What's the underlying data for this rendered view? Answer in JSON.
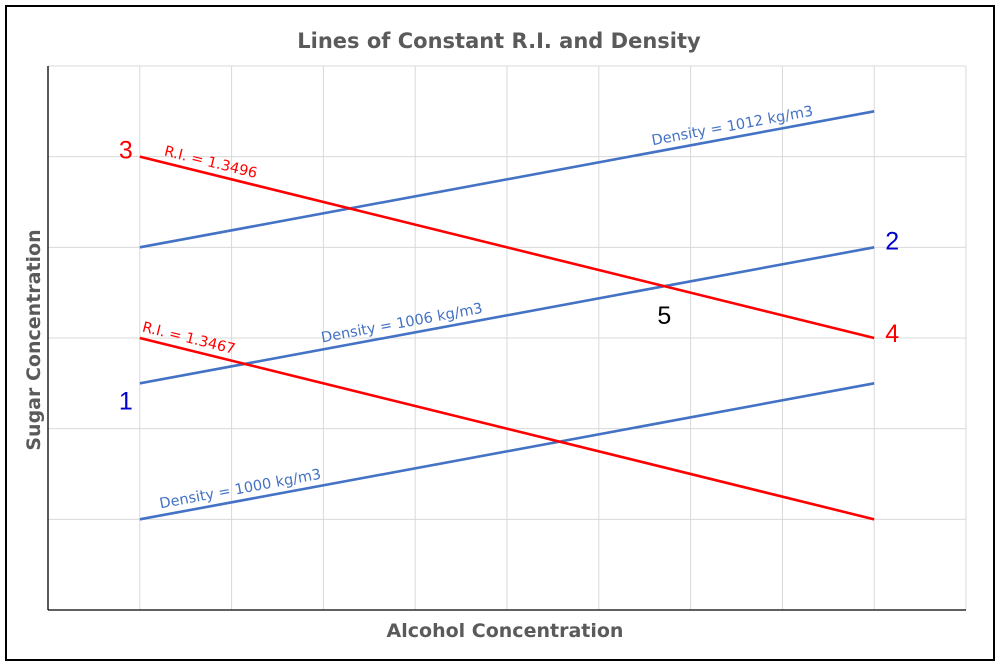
{
  "chart_data": {
    "type": "line",
    "title": "Lines of Constant R.I. and Density",
    "xlabel": "Alcohol Concentration",
    "ylabel": "Sugar Concentration",
    "xlim": [
      0,
      10
    ],
    "ylim": [
      0,
      6
    ],
    "grid": true,
    "tick_labels_shown": false,
    "series": [
      {
        "name": "Density = 1000 kg/m3",
        "color": "#4472c4",
        "x": [
          1,
          9
        ],
        "y": [
          1,
          2.5
        ]
      },
      {
        "name": "Density = 1006 kg/m3",
        "color": "#4472c4",
        "x": [
          1,
          9
        ],
        "y": [
          2.5,
          4
        ]
      },
      {
        "name": "Density = 1012 kg/m3",
        "color": "#4472c4",
        "x": [
          1,
          9
        ],
        "y": [
          4,
          5.5
        ]
      },
      {
        "name": "R.I. = 1.3467",
        "color": "#ff0000",
        "x": [
          1,
          9
        ],
        "y": [
          3,
          1
        ]
      },
      {
        "name": "R.I. = 1.3496",
        "color": "#ff0000",
        "x": [
          1,
          9
        ],
        "y": [
          5,
          3
        ]
      }
    ],
    "annotations": [
      {
        "text": "1",
        "color": "#0000cc"
      },
      {
        "text": "2",
        "color": "#0000cc"
      },
      {
        "text": "3",
        "color": "#ff0000"
      },
      {
        "text": "4",
        "color": "#ff0000"
      },
      {
        "text": "5",
        "color": "#000000"
      }
    ]
  }
}
